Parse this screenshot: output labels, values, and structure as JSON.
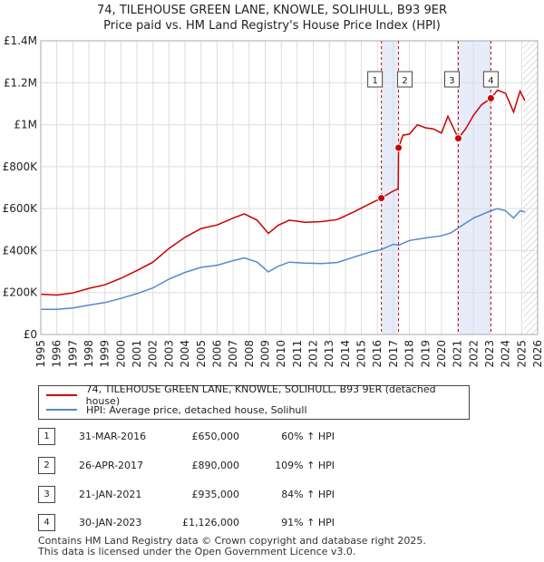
{
  "header": {
    "title_line1": "74, TILEHOUSE GREEN LANE, KNOWLE, SOLIHULL, B93 9ER",
    "title_line2": "Price paid vs. HM Land Registry's House Price Index (HPI)"
  },
  "chart_data": {
    "type": "line",
    "xlim": [
      1995,
      2026
    ],
    "ylim": [
      0,
      1400000
    ],
    "x_ticks": [
      "1995",
      "1996",
      "1997",
      "1998",
      "1999",
      "2000",
      "2001",
      "2002",
      "2003",
      "2004",
      "2005",
      "2006",
      "2007",
      "2008",
      "2009",
      "2010",
      "2011",
      "2012",
      "2013",
      "2014",
      "2015",
      "2016",
      "2017",
      "2018",
      "2019",
      "2020",
      "2021",
      "2022",
      "2023",
      "2024",
      "2025",
      "2026"
    ],
    "y_ticks": [
      {
        "value": 0,
        "label": "£0"
      },
      {
        "value": 200000,
        "label": "£200K"
      },
      {
        "value": 400000,
        "label": "£400K"
      },
      {
        "value": 600000,
        "label": "£600K"
      },
      {
        "value": 800000,
        "label": "£800K"
      },
      {
        "value": 1000000,
        "label": "£1M"
      },
      {
        "value": 1200000,
        "label": "£1.2M"
      },
      {
        "value": 1400000,
        "label": "£1.4M"
      }
    ],
    "grid": true,
    "shaded_periods": [
      [
        2016.25,
        2017.32
      ],
      [
        2021.05,
        2023.08
      ]
    ],
    "future_from": 2025.1,
    "series": [
      {
        "name": "74, TILEHOUSE GREEN LANE, KNOWLE, SOLIHULL, B93 9ER (detached house)",
        "color": "#cc0000",
        "points": [
          [
            1995,
            192000
          ],
          [
            1996,
            188000
          ],
          [
            1997,
            198000
          ],
          [
            1998,
            220000
          ],
          [
            1999,
            237000
          ],
          [
            2000,
            268000
          ],
          [
            2001,
            305000
          ],
          [
            2002,
            345000
          ],
          [
            2003,
            410000
          ],
          [
            2004,
            463000
          ],
          [
            2005,
            505000
          ],
          [
            2006,
            522000
          ],
          [
            2007,
            555000
          ],
          [
            2007.7,
            575000
          ],
          [
            2008.5,
            545000
          ],
          [
            2009.2,
            482000
          ],
          [
            2009.8,
            520000
          ],
          [
            2010.5,
            545000
          ],
          [
            2011.5,
            535000
          ],
          [
            2012.5,
            538000
          ],
          [
            2013.5,
            548000
          ],
          [
            2014.5,
            583000
          ],
          [
            2015.5,
            622000
          ],
          [
            2016.25,
            650000
          ],
          [
            2016.9,
            680000
          ],
          [
            2017.3,
            695000
          ],
          [
            2017.32,
            890000
          ],
          [
            2017.6,
            950000
          ],
          [
            2018,
            955000
          ],
          [
            2018.5,
            1000000
          ],
          [
            2019,
            985000
          ],
          [
            2019.5,
            980000
          ],
          [
            2020,
            960000
          ],
          [
            2020.4,
            1040000
          ],
          [
            2021.05,
            935000
          ],
          [
            2021.5,
            980000
          ],
          [
            2022,
            1045000
          ],
          [
            2022.5,
            1095000
          ],
          [
            2023.08,
            1126000
          ],
          [
            2023.5,
            1165000
          ],
          [
            2024,
            1150000
          ],
          [
            2024.5,
            1060000
          ],
          [
            2024.9,
            1160000
          ],
          [
            2025.2,
            1115000
          ]
        ]
      },
      {
        "name": "HPI: Average price, detached house, Solihull",
        "color": "#5588cc",
        "points": [
          [
            1995,
            120000
          ],
          [
            1996,
            120000
          ],
          [
            1997,
            126000
          ],
          [
            1998,
            140000
          ],
          [
            1999,
            152000
          ],
          [
            2000,
            172000
          ],
          [
            2001,
            195000
          ],
          [
            2002,
            222000
          ],
          [
            2003,
            264000
          ],
          [
            2004,
            296000
          ],
          [
            2005,
            320000
          ],
          [
            2006,
            330000
          ],
          [
            2007,
            352000
          ],
          [
            2007.7,
            365000
          ],
          [
            2008.5,
            345000
          ],
          [
            2009.2,
            298000
          ],
          [
            2009.8,
            325000
          ],
          [
            2010.5,
            345000
          ],
          [
            2011.5,
            340000
          ],
          [
            2012.5,
            338000
          ],
          [
            2013.5,
            343000
          ],
          [
            2014.5,
            368000
          ],
          [
            2015.5,
            392000
          ],
          [
            2016.25,
            405000
          ],
          [
            2017,
            430000
          ],
          [
            2017.32,
            425000
          ],
          [
            2018,
            448000
          ],
          [
            2019,
            460000
          ],
          [
            2020,
            470000
          ],
          [
            2020.6,
            485000
          ],
          [
            2021.05,
            508000
          ],
          [
            2022,
            555000
          ],
          [
            2023.08,
            590000
          ],
          [
            2023.5,
            600000
          ],
          [
            2024,
            590000
          ],
          [
            2024.5,
            555000
          ],
          [
            2024.9,
            590000
          ],
          [
            2025.2,
            585000
          ]
        ]
      }
    ],
    "sales": [
      {
        "id": "1",
        "x": 2016.25,
        "y": 650000
      },
      {
        "id": "2",
        "x": 2017.32,
        "y": 890000
      },
      {
        "id": "3",
        "x": 2021.05,
        "y": 935000
      },
      {
        "id": "4",
        "x": 2023.08,
        "y": 1126000
      }
    ]
  },
  "legend": {
    "items": [
      {
        "label": "74, TILEHOUSE GREEN LANE, KNOWLE, SOLIHULL, B93 9ER (detached house)",
        "color": "#cc0000"
      },
      {
        "label": "HPI: Average price, detached house, Solihull",
        "color": "#5588cc"
      }
    ]
  },
  "transactions": [
    {
      "id": "1",
      "date": "31-MAR-2016",
      "price": "£650,000",
      "hpi": "60% ↑ HPI"
    },
    {
      "id": "2",
      "date": "26-APR-2017",
      "price": "£890,000",
      "hpi": "109% ↑ HPI"
    },
    {
      "id": "3",
      "date": "21-JAN-2021",
      "price": "£935,000",
      "hpi": "84% ↑ HPI"
    },
    {
      "id": "4",
      "date": "30-JAN-2023",
      "price": "£1,126,000",
      "hpi": "91% ↑ HPI"
    }
  ],
  "footer": {
    "line1": "Contains HM Land Registry data © Crown copyright and database right 2025.",
    "line2": "This data is licensed under the Open Government Licence v3.0."
  }
}
